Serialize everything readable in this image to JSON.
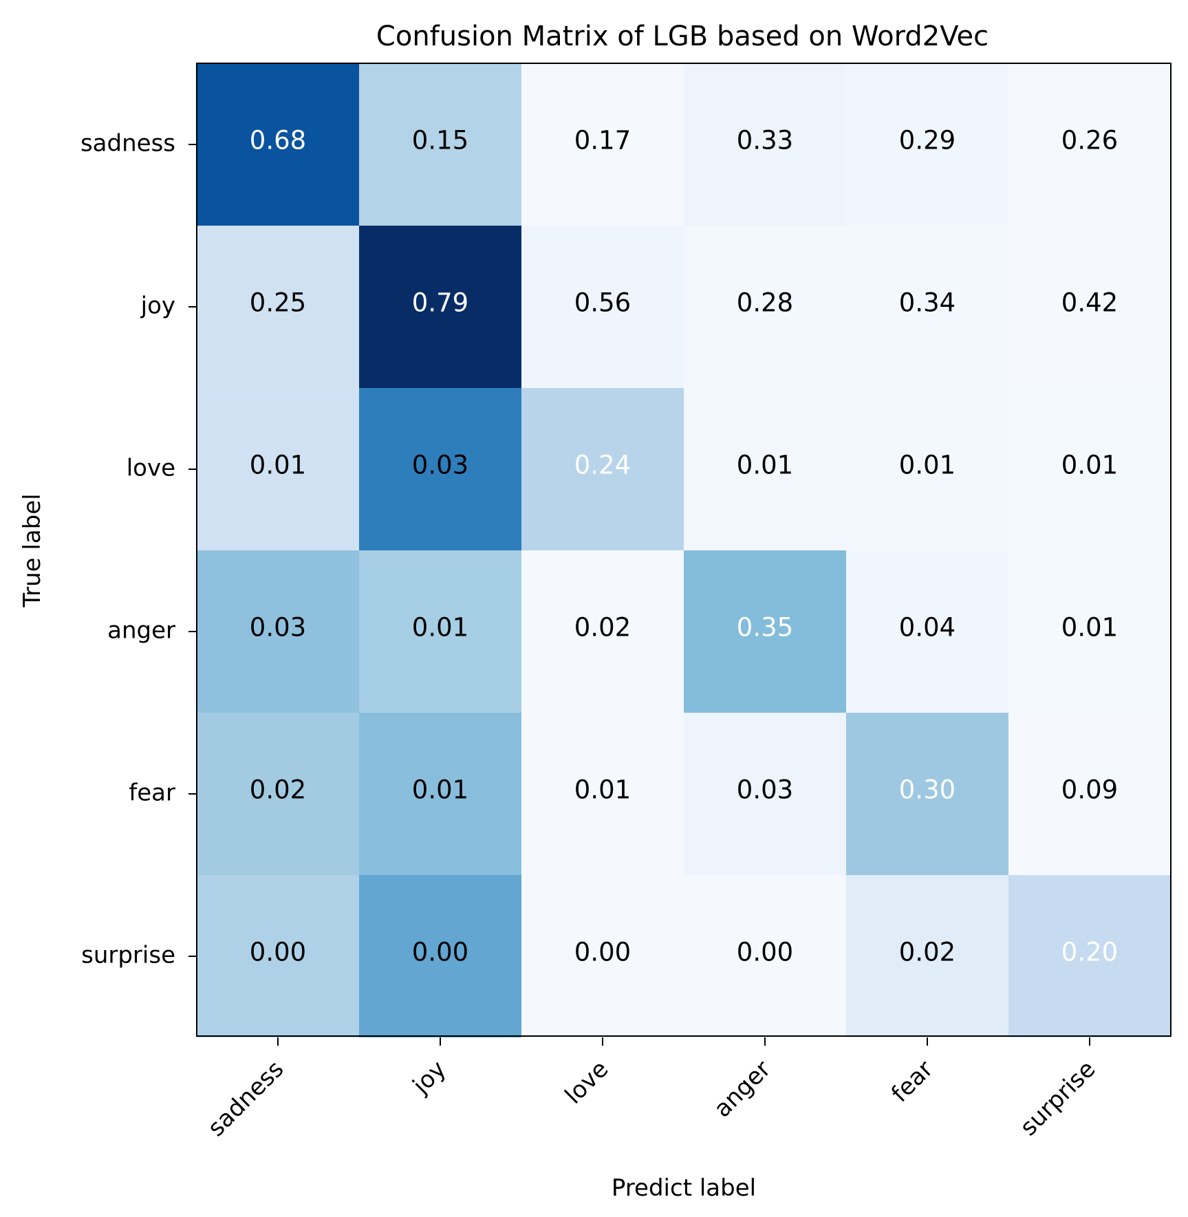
{
  "chart_data": {
    "type": "heatmap",
    "title": "Confusion Matrix of LGB based on Word2Vec",
    "xlabel": "Predict label",
    "ylabel": "True label",
    "x_categories": [
      "sadness",
      "joy",
      "love",
      "anger",
      "fear",
      "surprise"
    ],
    "y_categories": [
      "sadness",
      "joy",
      "love",
      "anger",
      "fear",
      "surprise"
    ],
    "values": [
      [
        "0.68",
        "0.15",
        "0.17",
        "0.33",
        "0.29",
        "0.26"
      ],
      [
        "0.25",
        "0.79",
        "0.56",
        "0.28",
        "0.34",
        "0.42"
      ],
      [
        "0.01",
        "0.03",
        "0.24",
        "0.01",
        "0.01",
        "0.01"
      ],
      [
        "0.03",
        "0.01",
        "0.02",
        "0.35",
        "0.04",
        "0.01"
      ],
      [
        "0.02",
        "0.01",
        "0.01",
        "0.03",
        "0.30",
        "0.09"
      ],
      [
        "0.00",
        "0.00",
        "0.00",
        "0.00",
        "0.02",
        "0.20"
      ]
    ],
    "cell_colors": [
      [
        "#0a539e",
        "#b3d3e8",
        "#f5f9fe",
        "#edf4fc",
        "#f0f6fd",
        "#f5f9fe"
      ],
      [
        "#d0e1f2",
        "#082d66",
        "#eef5fc",
        "#f3f8fe",
        "#f2f8fd",
        "#f5f9fe"
      ],
      [
        "#cfe1f2",
        "#2f7ebc",
        "#b7d4ea",
        "#f2f8fd",
        "#f3f8fe",
        "#f4f9fe"
      ],
      [
        "#8fc1de",
        "#a6cee4",
        "#f5f9fe",
        "#84bcdb",
        "#f0f6fd",
        "#f4f9fe"
      ],
      [
        "#a2cbe2",
        "#88bedc",
        "#f5f9fe",
        "#edf4fc",
        "#9ec8e1",
        "#f5f9fe"
      ],
      [
        "#afd1e7",
        "#62a6d1",
        "#f5f9fe",
        "#f5f9fe",
        "#e0ecf8",
        "#c6dbef"
      ]
    ],
    "text_colors": [
      [
        "#ffffff",
        "#000000",
        "#000000",
        "#000000",
        "#000000",
        "#000000"
      ],
      [
        "#000000",
        "#ffffff",
        "#000000",
        "#000000",
        "#000000",
        "#000000"
      ],
      [
        "#000000",
        "#000000",
        "#ffffff",
        "#000000",
        "#000000",
        "#000000"
      ],
      [
        "#000000",
        "#000000",
        "#000000",
        "#ffffff",
        "#000000",
        "#000000"
      ],
      [
        "#000000",
        "#000000",
        "#000000",
        "#000000",
        "#ffffff",
        "#000000"
      ],
      [
        "#000000",
        "#000000",
        "#000000",
        "#000000",
        "#000000",
        "#ffffff"
      ]
    ],
    "colormap": "Blues",
    "grid": false,
    "legend": "none"
  }
}
